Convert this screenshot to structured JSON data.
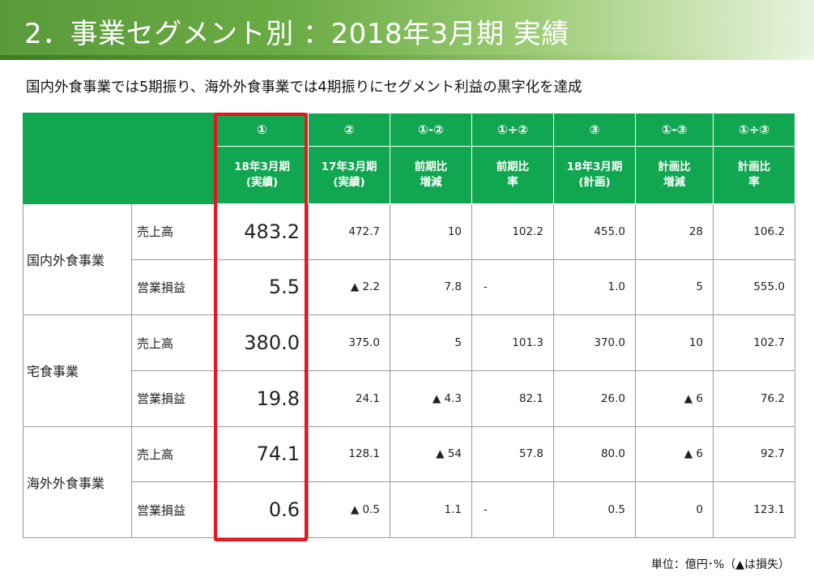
{
  "header": {
    "title": "2．事業セグメント別 ：2018年3月期 実績",
    "subtitle": "国内外食事業では5期振り、海外外食事業では4期振りにセグメント利益の黒字化を達成"
  },
  "table": {
    "column_numbers": [
      "①",
      "②",
      "①-②",
      "①÷②",
      "③",
      "①-③",
      "①÷③"
    ],
    "column_labels": [
      [
        "18年3月期",
        "(実績)"
      ],
      [
        "17年3月期",
        "(実績)"
      ],
      [
        "前期比",
        "増減"
      ],
      [
        "前期比",
        "率"
      ],
      [
        "18年3月期",
        "(計画)"
      ],
      [
        "計画比",
        "増減"
      ],
      [
        "計画比",
        "率"
      ]
    ],
    "segments": [
      {
        "name": "国内外食事業",
        "rows": [
          {
            "metric": "売上高",
            "values": [
              "483.2",
              "472.7",
              "10",
              "102.2",
              "455.0",
              "28",
              "106.2"
            ]
          },
          {
            "metric": "営業損益",
            "values": [
              "5.5",
              "▲ 2.2",
              "7.8",
              "-",
              "1.0",
              "5",
              "555.0"
            ]
          }
        ]
      },
      {
        "name": "宅食事業",
        "rows": [
          {
            "metric": "売上高",
            "values": [
              "380.0",
              "375.0",
              "5",
              "101.3",
              "370.0",
              "10",
              "102.7"
            ]
          },
          {
            "metric": "営業損益",
            "values": [
              "19.8",
              "24.1",
              "▲ 4.3",
              "82.1",
              "26.0",
              "▲ 6",
              "76.2"
            ]
          }
        ]
      },
      {
        "name": "海外外食事業",
        "rows": [
          {
            "metric": "売上高",
            "values": [
              "74.1",
              "128.1",
              "▲ 54",
              "57.8",
              "80.0",
              "▲ 6",
              "92.7"
            ]
          },
          {
            "metric": "営業損益",
            "values": [
              "0.6",
              "▲ 0.5",
              "1.1",
              "-",
              "0.5",
              "0",
              "123.1"
            ]
          }
        ]
      }
    ]
  },
  "footer": {
    "unit_note": "単位：億円･%（▲は損失）"
  },
  "colors": {
    "header_green": "#11a650",
    "highlight_red": "#e8141e"
  }
}
